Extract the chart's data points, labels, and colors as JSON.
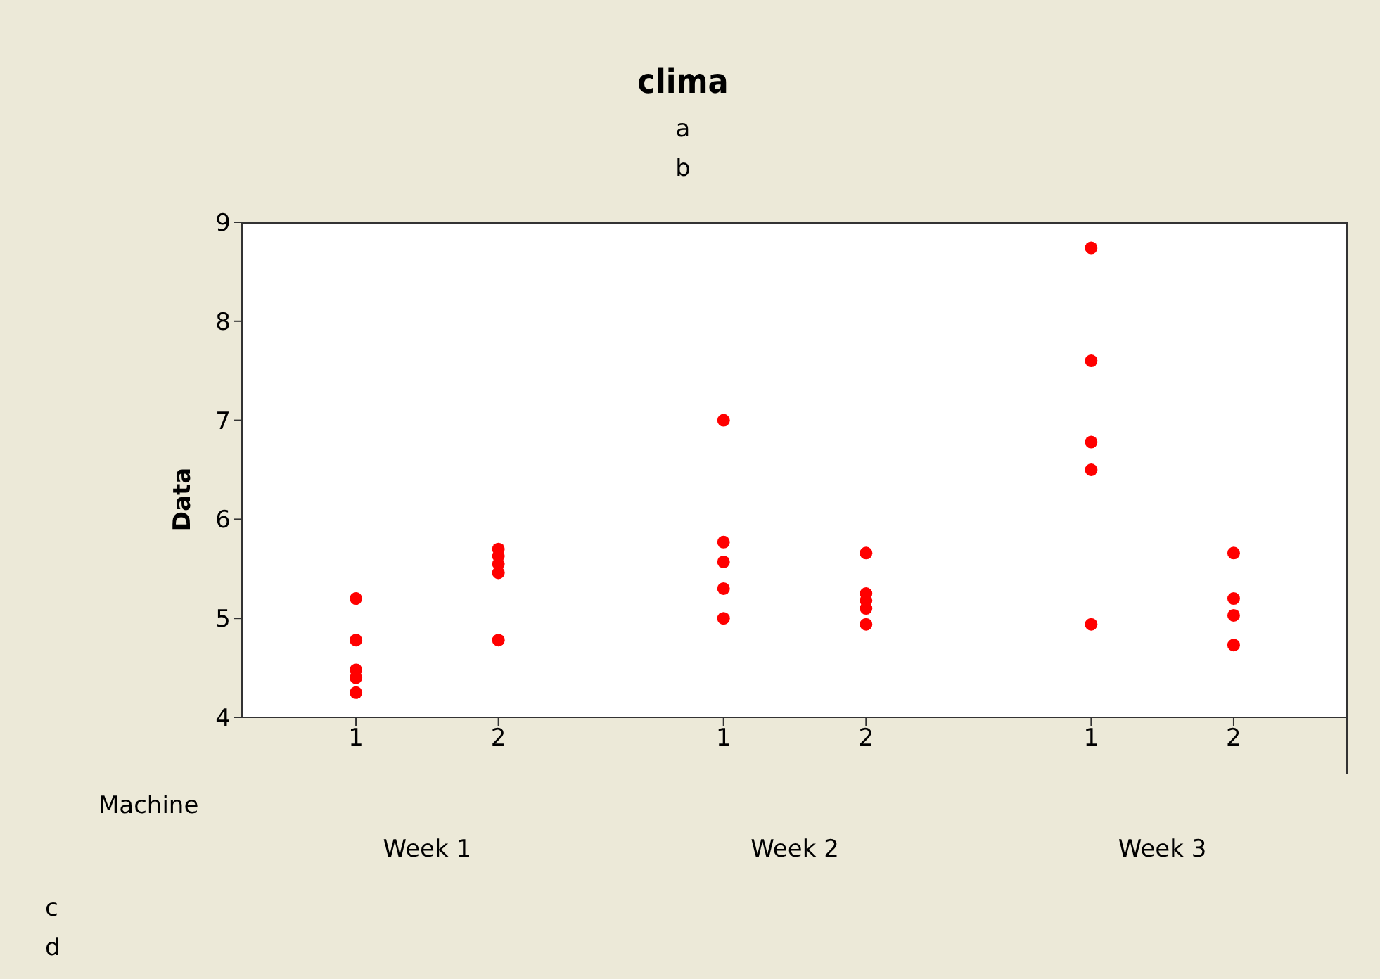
{
  "chart_data": {
    "type": "scatter",
    "title": "clima",
    "subtitle": "a",
    "xlabel": "Machine",
    "ylabel": "Data",
    "categories": [
      "1",
      "2",
      "1",
      "2",
      "1",
      "2"
    ],
    "series": [
      {
        "color": "#ff0000",
        "values": [
          5.2,
          5.7,
          7.0,
          5.66,
          8.74,
          5.66
        ]
      },
      {
        "color": "#ff0000",
        "values": [
          4.78,
          5.63,
          5.77,
          5.25,
          7.6,
          5.2
        ]
      },
      {
        "color": "#ff0000",
        "values": [
          4.48,
          5.55,
          5.57,
          5.18,
          6.78,
          5.03
        ]
      },
      {
        "color": "#ff0000",
        "values": [
          4.4,
          5.46,
          5.3,
          5.1,
          6.5,
          4.73
        ]
      },
      {
        "color": "#ff0000",
        "values": [
          4.25,
          4.78,
          5.0,
          4.94,
          4.94,
          null
        ]
      }
    ],
    "ylim": [
      4,
      9
    ],
    "yticks": [
      4,
      5,
      6,
      7,
      8,
      9
    ],
    "grid": false,
    "marker": "circle",
    "annotations": [
      "b",
      "Week 1",
      "Week 2",
      "Week 3",
      "c",
      "d"
    ]
  }
}
